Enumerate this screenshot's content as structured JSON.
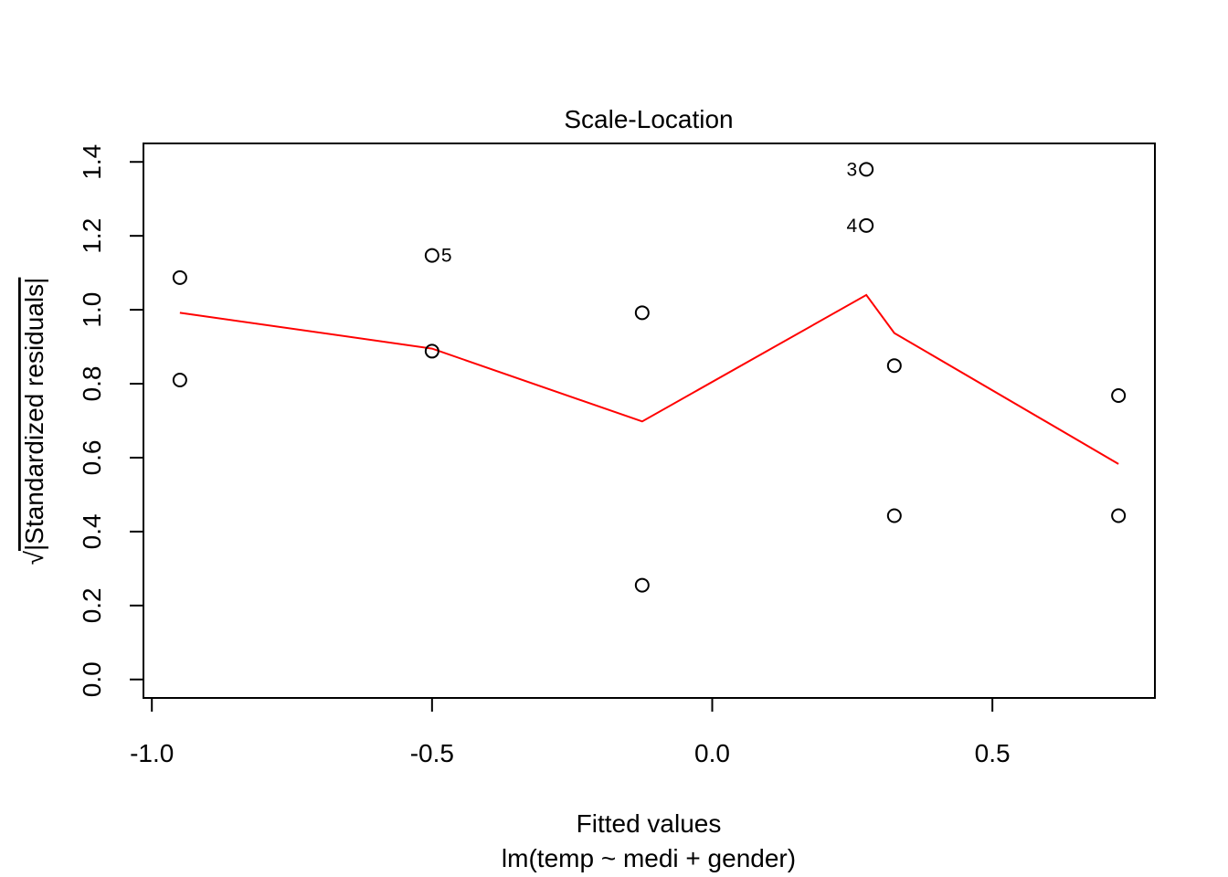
{
  "chart_data": {
    "type": "scatter",
    "title": "Scale-Location",
    "xlabel": "Fitted values",
    "xlabel_sub": "lm(temp ~ medi + gender)",
    "ylabel_radical": "√",
    "ylabel": "|Standardized residuals|",
    "xlim": [
      -1.015,
      0.79
    ],
    "ylim": [
      -0.05,
      1.45
    ],
    "x_ticks": [
      -1.0,
      -0.5,
      0.0,
      0.5
    ],
    "x_tick_labels": [
      "-1.0",
      "-0.5",
      "0.0",
      "0.5"
    ],
    "y_ticks": [
      0.0,
      0.2,
      0.4,
      0.6,
      0.8,
      1.0,
      1.2,
      1.4
    ],
    "y_tick_labels": [
      "0.0",
      "0.2",
      "0.4",
      "0.6",
      "0.8",
      "1.0",
      "1.2",
      "1.4"
    ],
    "grid": false,
    "points": [
      {
        "x": -0.95,
        "y": 1.087,
        "label": ""
      },
      {
        "x": -0.95,
        "y": 0.81,
        "label": ""
      },
      {
        "x": -0.5,
        "y": 1.147,
        "label": "5",
        "label_side": "right"
      },
      {
        "x": -0.5,
        "y": 0.888,
        "label": ""
      },
      {
        "x": -0.125,
        "y": 0.992,
        "label": ""
      },
      {
        "x": -0.125,
        "y": 0.255,
        "label": ""
      },
      {
        "x": 0.275,
        "y": 1.38,
        "label": "3",
        "label_side": "left"
      },
      {
        "x": 0.275,
        "y": 1.228,
        "label": "4",
        "label_side": "left"
      },
      {
        "x": 0.325,
        "y": 0.849,
        "label": ""
      },
      {
        "x": 0.325,
        "y": 0.443,
        "label": ""
      },
      {
        "x": 0.725,
        "y": 0.768,
        "label": ""
      },
      {
        "x": 0.725,
        "y": 0.443,
        "label": ""
      }
    ],
    "smooth_line": {
      "color": "#ff0000",
      "x": [
        -0.95,
        -0.5,
        -0.125,
        0.275,
        0.325,
        0.725
      ],
      "y": [
        0.992,
        0.895,
        0.698,
        1.04,
        0.937,
        0.583
      ]
    }
  }
}
